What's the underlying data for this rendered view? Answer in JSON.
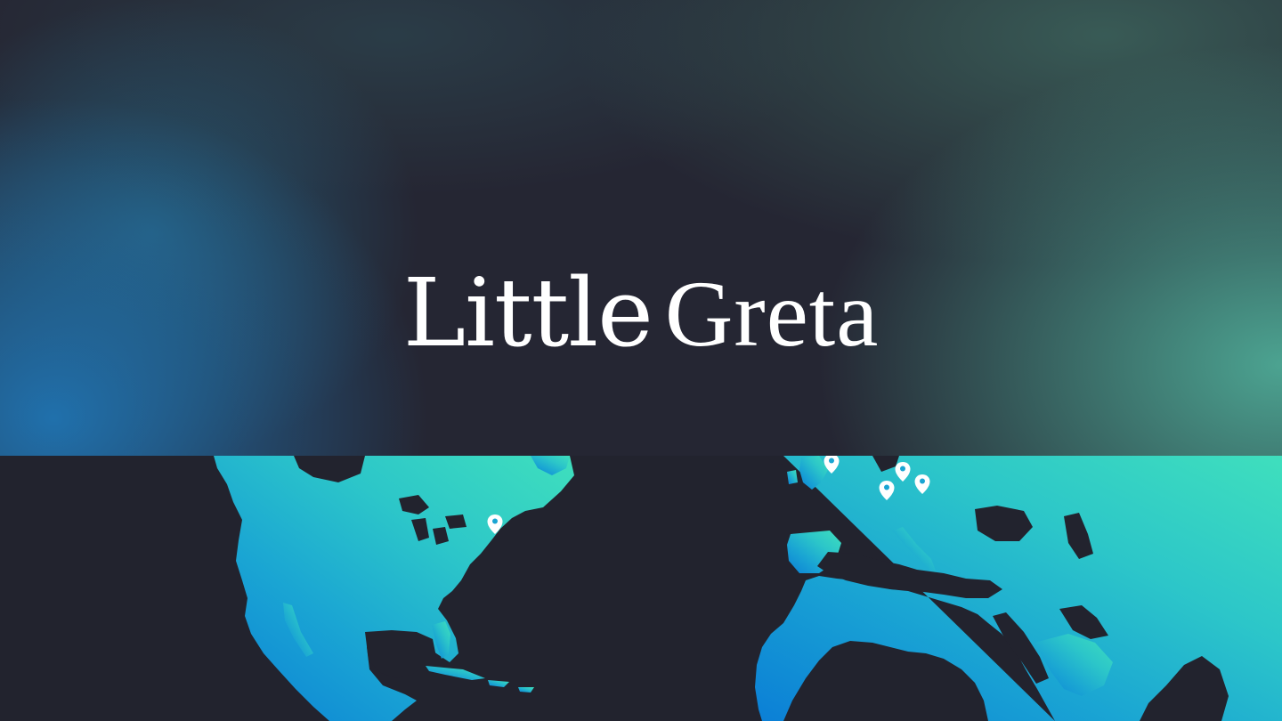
{
  "brand": {
    "word1": "Little",
    "word2": "Greta"
  },
  "colors": {
    "background": "#22232e",
    "land_gradient_start": "#0b8bd6",
    "land_gradient_end": "#3ddbbe",
    "logo_text": "#ffffff",
    "pin": "#ffffff"
  },
  "map": {
    "icon": "world-map",
    "pins": [
      {
        "id": "new-york",
        "icon": "location-pin-icon"
      },
      {
        "id": "london",
        "icon": "location-pin-icon"
      },
      {
        "id": "central-europe-a",
        "icon": "location-pin-icon"
      },
      {
        "id": "central-europe-b",
        "icon": "location-pin-icon"
      },
      {
        "id": "central-europe-c",
        "icon": "location-pin-icon"
      }
    ]
  }
}
